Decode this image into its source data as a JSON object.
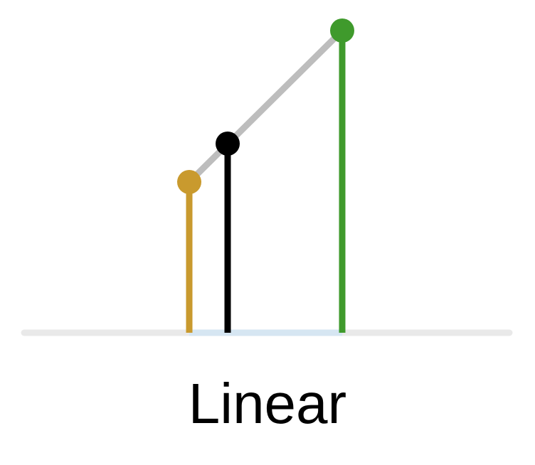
{
  "caption": "Linear",
  "colors": {
    "baseline": "#e9e9e9",
    "interval": "#d6e6f2",
    "connector": "#bdbdbd",
    "start": "#c99a2e",
    "current": "#000000",
    "end": "#3f9a2c"
  },
  "points": [
    {
      "name": "start",
      "t": 0.0,
      "value": 0.25
    },
    {
      "name": "current",
      "t": 0.25,
      "value": 0.375
    },
    {
      "name": "end",
      "t": 1.0,
      "value": 0.75
    }
  ]
}
